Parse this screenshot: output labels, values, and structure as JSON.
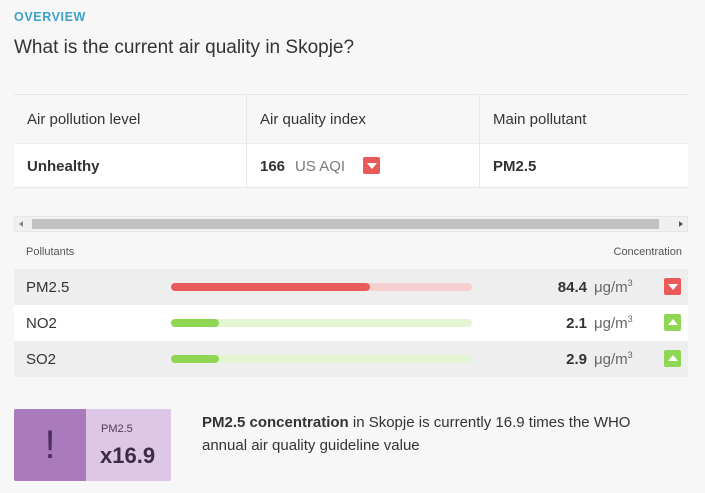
{
  "header": {
    "overview_label": "OVERVIEW",
    "title": "What is the current air quality in Skopje?"
  },
  "summary": {
    "columns": [
      {
        "heading": "Air pollution level",
        "value": "Unhealthy"
      },
      {
        "heading": "Air quality index",
        "value": "166",
        "unit": "US AQI",
        "trend": "down"
      },
      {
        "heading": "Main pollutant",
        "value": "PM2.5"
      }
    ]
  },
  "pollutants": {
    "header_left": "Pollutants",
    "header_right": "Concentration",
    "rows": [
      {
        "name": "PM2.5",
        "value": "84.4",
        "unit": "μg/m",
        "unit_sup": "3",
        "trend": "down",
        "level_fraction": 0.66,
        "bar_color": "#ea5a5a",
        "track_color": "#f6cfd0"
      },
      {
        "name": "NO2",
        "value": "2.1",
        "unit": "μg/m",
        "unit_sup": "3",
        "trend": "up",
        "level_fraction": 0.16,
        "bar_color": "#8ed653",
        "track_color": "#e3f5d3"
      },
      {
        "name": "SO2",
        "value": "2.9",
        "unit": "μg/m",
        "unit_sup": "3",
        "trend": "up",
        "level_fraction": 0.16,
        "bar_color": "#8ed653",
        "track_color": "#e3f5d3"
      }
    ]
  },
  "who_card": {
    "icon": "exclamation-icon",
    "pollutant": "PM2.5",
    "multiplier": "x16.9",
    "text_bold": "PM2.5 concentration",
    "text_rest": " in Skopje is currently 16.9 times the WHO annual air quality guideline value"
  },
  "colors": {
    "accent": "#3fa1c9",
    "unhealthy_red": "#ea5a5a",
    "good_green": "#8ed653",
    "card_purple": "#a97abc"
  }
}
